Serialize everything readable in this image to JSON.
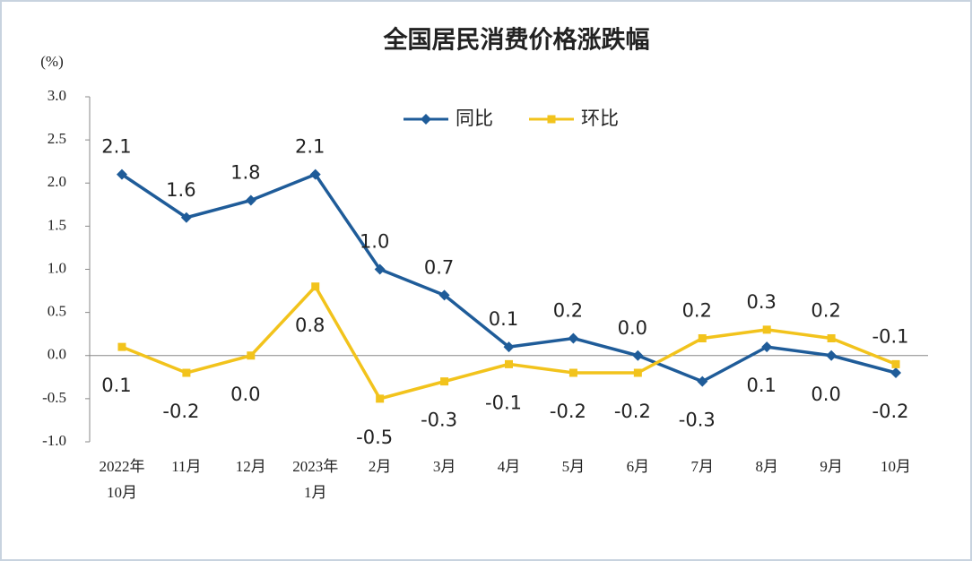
{
  "chart_data": {
    "type": "line",
    "title": "全国居民消费价格涨跌幅",
    "y_unit": "(%)",
    "categories": [
      [
        "2022年",
        "10月"
      ],
      [
        "11月"
      ],
      [
        "12月"
      ],
      [
        "2023年",
        "1月"
      ],
      [
        "2月"
      ],
      [
        "3月"
      ],
      [
        "4月"
      ],
      [
        "5月"
      ],
      [
        "6月"
      ],
      [
        "7月"
      ],
      [
        "8月"
      ],
      [
        "9月"
      ],
      [
        "10月"
      ]
    ],
    "series": [
      {
        "name": "同比",
        "color": "#1f5c99",
        "marker": "diamond",
        "values": [
          2.1,
          1.6,
          1.8,
          2.1,
          1.0,
          0.7,
          0.1,
          0.2,
          0.0,
          -0.3,
          0.1,
          0.0,
          -0.2
        ],
        "value_labels": [
          "2.1",
          "1.6",
          "1.8",
          "2.1",
          "1.0",
          "0.7",
          "0.1",
          "0.2",
          "0.0",
          "-0.3",
          "0.1",
          "0.0",
          "-0.2"
        ]
      },
      {
        "name": "环比",
        "color": "#f2c31c",
        "marker": "square",
        "values": [
          0.1,
          -0.2,
          0.0,
          0.8,
          -0.5,
          -0.3,
          -0.1,
          -0.2,
          -0.2,
          0.2,
          0.3,
          0.2,
          -0.1
        ],
        "value_labels": [
          "0.1",
          "-0.2",
          "0.0",
          "0.8",
          "-0.5",
          "-0.3",
          "-0.1",
          "-0.2",
          "-0.2",
          "0.2",
          "0.3",
          "0.2",
          "-0.1"
        ]
      }
    ],
    "ylim": [
      -1.0,
      3.0
    ],
    "yticks": [
      {
        "value": -1.0,
        "label": "-1.0"
      },
      {
        "value": -0.5,
        "label": "-0.5"
      },
      {
        "value": 0.0,
        "label": "0.0"
      },
      {
        "value": 0.5,
        "label": "0.5"
      },
      {
        "value": 1.0,
        "label": "1.0"
      },
      {
        "value": 1.5,
        "label": "1.5"
      },
      {
        "value": 2.0,
        "label": "2.0"
      },
      {
        "value": 2.5,
        "label": "2.5"
      },
      {
        "value": 3.0,
        "label": "3.0"
      }
    ],
    "legend_position": "top"
  }
}
